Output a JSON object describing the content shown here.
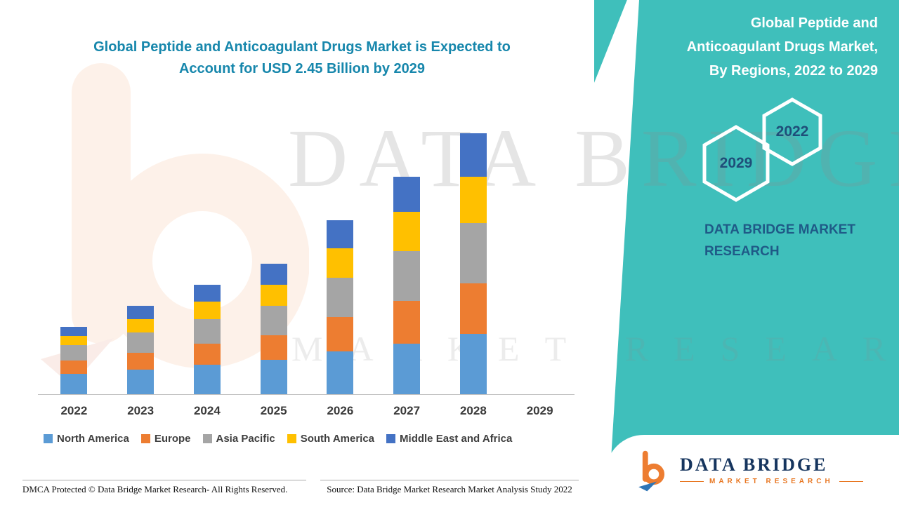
{
  "header": {
    "left_title_line1": "Global Peptide and Anticoagulant Drugs Market is Expected to",
    "left_title_line2": "Account for USD 2.45 Billion by 2029"
  },
  "right_panel": {
    "title_lines": [
      "Global Peptide and",
      "Anticoagulant Drugs Market,",
      "By Regions, 2022 to 2029"
    ],
    "hexagons": [
      {
        "label": "2029"
      },
      {
        "label": "2022"
      }
    ],
    "brand_line1": "DATA BRIDGE MARKET",
    "brand_line2": "RESEARCH"
  },
  "watermark": {
    "line1": "DATA BRIDGE",
    "line2": "MARKET RESEARCH"
  },
  "footer": {
    "dmca": "DMCA Protected © Data Bridge Market Research- All Rights Reserved.",
    "source": "Source: Data Bridge Market Research Market Analysis Study 2022"
  },
  "logo_box": {
    "brand": "DATA BRIDGE",
    "subtitle": "MARKET RESEARCH"
  },
  "colors": {
    "teal_background": "#3FBFBB",
    "left_title": "#1787AC",
    "navy_text": "#1F4E79"
  },
  "chart_data": {
    "type": "bar",
    "stacked": true,
    "title": "Global Peptide and Anticoagulant Drugs Market is Expected to Account for USD 2.45 Billion by 2029",
    "categories": [
      "2022",
      "2023",
      "2024",
      "2025",
      "2026",
      "2027",
      "2028",
      "2029"
    ],
    "series": [
      {
        "name": "North America",
        "color": "#5B9BD5",
        "values": [
          0.17,
          0.21,
          0.25,
          0.29,
          0.36,
          0.43,
          0.51,
          0
        ]
      },
      {
        "name": "Europe",
        "color": "#ED7D31",
        "values": [
          0.11,
          0.14,
          0.18,
          0.21,
          0.29,
          0.36,
          0.43,
          0
        ]
      },
      {
        "name": "Asia Pacific",
        "color": "#A5A5A5",
        "values": [
          0.13,
          0.17,
          0.21,
          0.25,
          0.33,
          0.42,
          0.51,
          0
        ]
      },
      {
        "name": "South America",
        "color": "#FFC000",
        "values": [
          0.08,
          0.11,
          0.15,
          0.18,
          0.25,
          0.33,
          0.39,
          0
        ]
      },
      {
        "name": "Middle East and Africa",
        "color": "#4472C4",
        "values": [
          0.08,
          0.11,
          0.14,
          0.18,
          0.24,
          0.3,
          0.37,
          0
        ]
      }
    ],
    "units": "USD Billion (estimated from bar heights; no y-axis labels shown; 2029 bar not drawn)",
    "xlabel": "",
    "ylabel": "",
    "ylim": [
      0,
      2.4
    ],
    "grid": false,
    "legend_position": "bottom"
  }
}
